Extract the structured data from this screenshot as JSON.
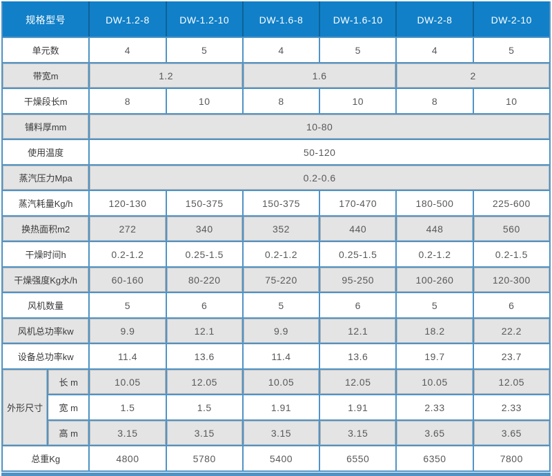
{
  "table": {
    "header": {
      "label": "规格型号",
      "models": [
        "DW-1.2-8",
        "DW-1.2-10",
        "DW-1.6-8",
        "DW-1.6-10",
        "DW-2-8",
        "DW-2-10"
      ]
    },
    "rows": {
      "unit_count": {
        "label": "单元数",
        "values": [
          "4",
          "5",
          "4",
          "5",
          "4",
          "5"
        ]
      },
      "belt_width": {
        "label": "带宽m",
        "values": [
          "1.2",
          "1.6",
          "2"
        ]
      },
      "drying_section_length": {
        "label": "干燥段长m",
        "values": [
          "8",
          "10",
          "8",
          "10",
          "8",
          "10"
        ]
      },
      "material_thickness": {
        "label": "铺料厚mm",
        "value": "10-80"
      },
      "operating_temperature": {
        "label": "使用温度",
        "value": "50-120"
      },
      "steam_pressure": {
        "label": "蒸汽压力Mpa",
        "value": "0.2-0.6"
      },
      "steam_consumption": {
        "label": "蒸汽耗量Kg/h",
        "values": [
          "120-130",
          "150-375",
          "150-375",
          "170-470",
          "180-500",
          "225-600"
        ]
      },
      "heat_exchange_area": {
        "label": "换热面积m2",
        "values": [
          "272",
          "340",
          "352",
          "440",
          "448",
          "560"
        ]
      },
      "drying_time": {
        "label": "干燥时间h",
        "values": [
          "0.2-1.2",
          "0.25-1.5",
          "0.2-1.2",
          "0.25-1.5",
          "0.2-1.2",
          "0.2-1.5"
        ]
      },
      "drying_intensity": {
        "label": "干燥强度Kg水/h",
        "values": [
          "60-160",
          "80-220",
          "75-220",
          "95-250",
          "100-260",
          "120-300"
        ]
      },
      "fan_count": {
        "label": "风机数量",
        "values": [
          "5",
          "6",
          "5",
          "6",
          "5",
          "6"
        ]
      },
      "fan_total_power": {
        "label": "风机总功率kw",
        "values": [
          "9.9",
          "12.1",
          "9.9",
          "12.1",
          "18.2",
          "22.2"
        ]
      },
      "equipment_total_power": {
        "label": "设备总功率kw",
        "values": [
          "11.4",
          "13.6",
          "11.4",
          "13.6",
          "19.7",
          "23.7"
        ]
      },
      "overall_dimensions": {
        "label": "外形尺寸",
        "length": {
          "label": "长 m",
          "values": [
            "10.05",
            "12.05",
            "10.05",
            "12.05",
            "10.05",
            "12.05"
          ]
        },
        "width": {
          "label": "宽 m",
          "values": [
            "1.5",
            "1.5",
            "1.91",
            "1.91",
            "2.33",
            "2.33"
          ]
        },
        "height": {
          "label": "高 m",
          "values": [
            "3.15",
            "3.15",
            "3.15",
            "3.15",
            "3.65",
            "3.65"
          ]
        }
      },
      "total_weight": {
        "label": "总重Kg",
        "values": [
          "4800",
          "5780",
          "5400",
          "6550",
          "6350",
          "7800"
        ]
      }
    },
    "colors": {
      "header_bg": "#1180c8",
      "header_divider": "#0d6298",
      "grid_line": "#4f93c5",
      "gray_row_bg": "#e4e4e4",
      "gray_inner_border": "#b6b6b6",
      "value_text": "#58585a",
      "label_text": "#3a3a3a",
      "header_text": "#ffffff"
    }
  }
}
